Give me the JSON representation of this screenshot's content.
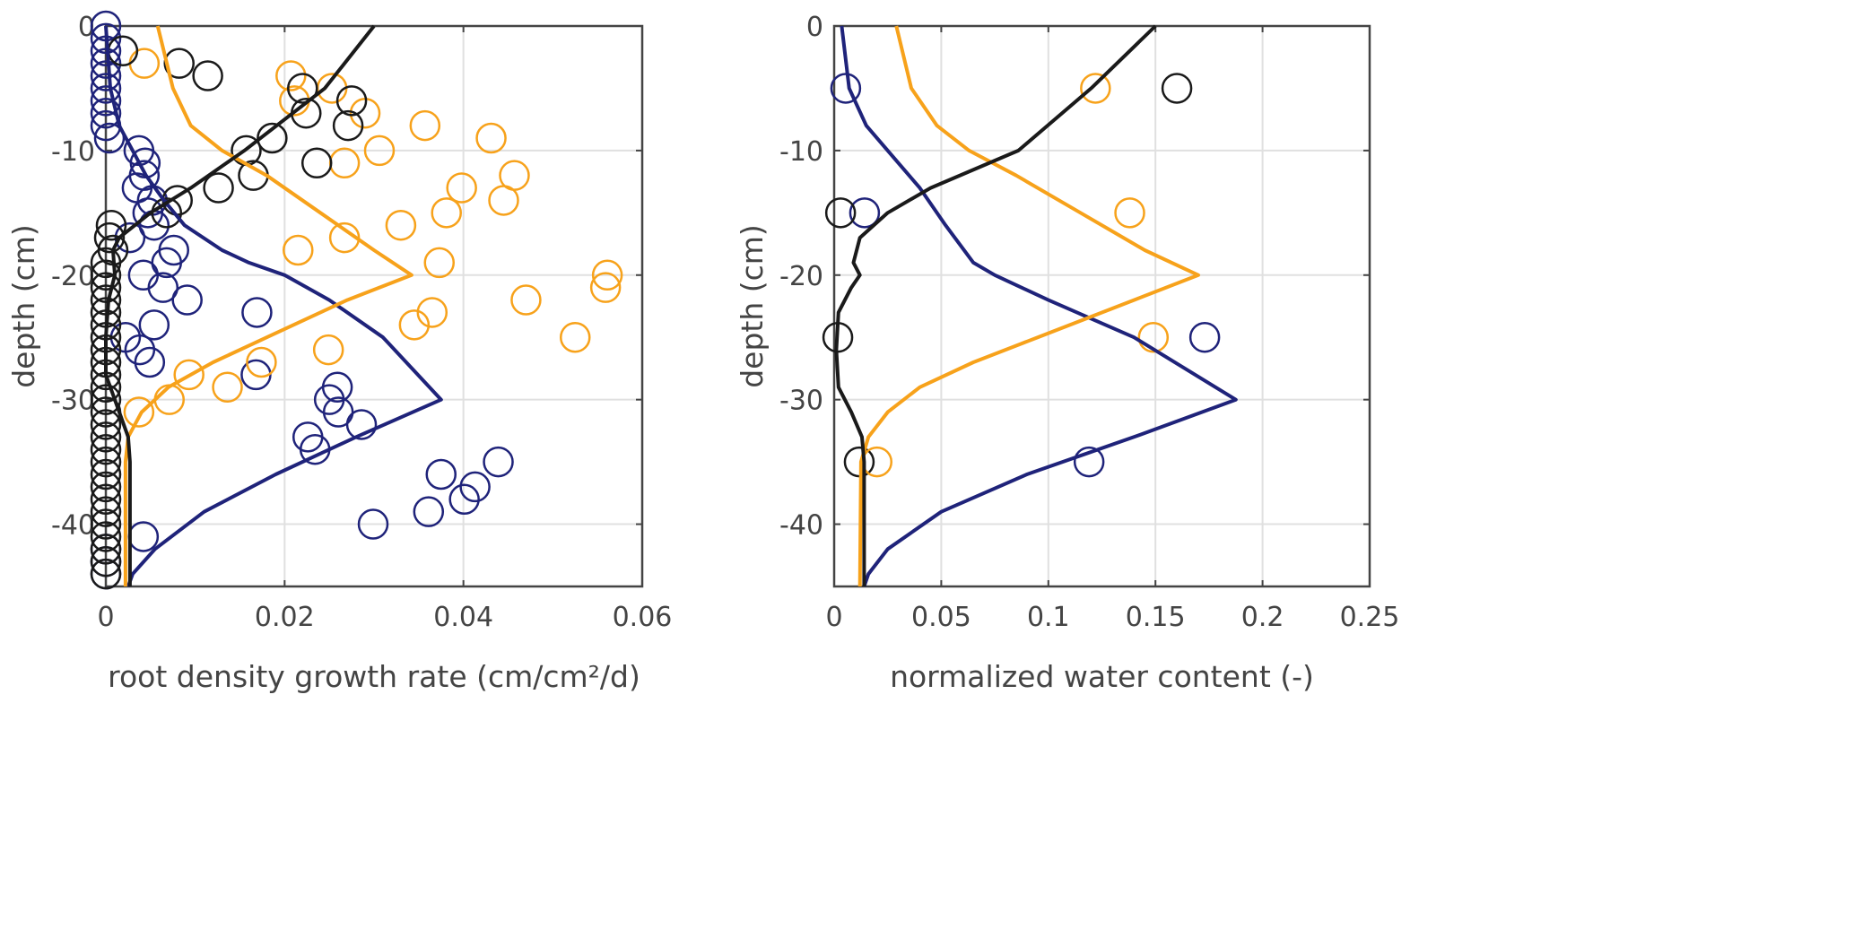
{
  "colors": {
    "blue": "#1f237a",
    "orange": "#f7a21b",
    "black": "#1a1a1a",
    "grid": "#e0e0e0",
    "axis": "#444444"
  },
  "chart_data": [
    {
      "type": "scatter",
      "xlabel": "root density growth rate (cm/cm²/d)",
      "ylabel": "depth (cm)",
      "xlim": [
        0,
        0.06
      ],
      "ylim": [
        -45,
        0
      ],
      "xticks": [
        "0",
        "0.02",
        "0.04",
        "0.06"
      ],
      "yticks": [
        "0",
        "-10",
        "-20",
        "-30",
        "-40"
      ],
      "grid": true,
      "series": [
        {
          "color": "blue",
          "kind": "points",
          "points": [
            [
              0,
              0
            ],
            [
              0,
              -1
            ],
            [
              0,
              -2
            ],
            [
              0,
              -3
            ],
            [
              0,
              -4
            ],
            [
              0,
              -5
            ],
            [
              0,
              -6
            ],
            [
              0,
              -7
            ],
            [
              0,
              -8
            ],
            [
              0.0004,
              -9
            ],
            [
              0.0037,
              -10
            ],
            [
              0.0044,
              -11
            ],
            [
              0.0043,
              -12
            ],
            [
              0.0035,
              -13
            ],
            [
              0.0052,
              -14
            ],
            [
              0.0047,
              -15
            ],
            [
              0.0054,
              -16
            ],
            [
              0.0027,
              -17
            ],
            [
              0.0076,
              -18
            ],
            [
              0.0068,
              -19
            ],
            [
              0.0042,
              -20
            ],
            [
              0.0064,
              -21
            ],
            [
              0.0091,
              -22
            ],
            [
              0.0169,
              -23
            ],
            [
              0.0054,
              -24
            ],
            [
              0.0022,
              -25
            ],
            [
              0.0038,
              -26
            ],
            [
              0.0049,
              -27
            ],
            [
              0.0168,
              -28
            ],
            [
              0.0259,
              -29
            ],
            [
              0.025,
              -30
            ],
            [
              0.026,
              -31
            ],
            [
              0.0286,
              -32
            ],
            [
              0.0226,
              -33
            ],
            [
              0.0234,
              -34
            ],
            [
              0.0439,
              -35
            ],
            [
              0.0375,
              -36
            ],
            [
              0.0413,
              -37
            ],
            [
              0.0401,
              -38
            ],
            [
              0.0361,
              -39
            ],
            [
              0.0299,
              -40
            ],
            [
              0.0042,
              -41
            ],
            [
              0,
              -42
            ],
            [
              0,
              -43
            ],
            [
              0,
              -44
            ]
          ]
        },
        {
          "color": "orange",
          "kind": "points",
          "points": [
            [
              0.0043,
              -3
            ],
            [
              0.0207,
              -4
            ],
            [
              0.0253,
              -5
            ],
            [
              0.0211,
              -6
            ],
            [
              0.029,
              -7
            ],
            [
              0.0357,
              -8
            ],
            [
              0.0431,
              -9
            ],
            [
              0.0306,
              -10
            ],
            [
              0.0267,
              -11
            ],
            [
              0.0457,
              -12
            ],
            [
              0.0398,
              -13
            ],
            [
              0.0445,
              -14
            ],
            [
              0.0381,
              -15
            ],
            [
              0.033,
              -16
            ],
            [
              0.0267,
              -17
            ],
            [
              0.0215,
              -18
            ],
            [
              0.0373,
              -19
            ],
            [
              0.0561,
              -20
            ],
            [
              0.0559,
              -21
            ],
            [
              0.047,
              -22
            ],
            [
              0.0365,
              -23
            ],
            [
              0.0345,
              -24
            ],
            [
              0.0525,
              -25
            ],
            [
              0.0249,
              -26
            ],
            [
              0.0174,
              -27
            ],
            [
              0.0093,
              -28
            ],
            [
              0.0136,
              -29
            ],
            [
              0.0071,
              -30
            ],
            [
              0.0037,
              -31
            ]
          ]
        },
        {
          "color": "black",
          "kind": "points",
          "points": [
            [
              0.0019,
              -2
            ],
            [
              0.0082,
              -3
            ],
            [
              0.0114,
              -4
            ],
            [
              0.022,
              -5
            ],
            [
              0.0275,
              -6
            ],
            [
              0.0224,
              -7
            ],
            [
              0.0271,
              -8
            ],
            [
              0.0186,
              -9
            ],
            [
              0.0157,
              -10
            ],
            [
              0.0236,
              -11
            ],
            [
              0.0165,
              -12
            ],
            [
              0.0126,
              -13
            ],
            [
              0.008,
              -14
            ],
            [
              0.0068,
              -15
            ],
            [
              0.0006,
              -16
            ],
            [
              0.0004,
              -17
            ],
            [
              0.0008,
              -18
            ],
            [
              0,
              -19
            ],
            [
              0,
              -20
            ],
            [
              0,
              -21
            ],
            [
              0,
              -22
            ],
            [
              0,
              -23
            ],
            [
              0,
              -24
            ],
            [
              0,
              -25
            ],
            [
              0,
              -26
            ],
            [
              0,
              -27
            ],
            [
              0,
              -28
            ],
            [
              0,
              -29
            ],
            [
              0,
              -30
            ],
            [
              0,
              -31
            ],
            [
              0,
              -32
            ],
            [
              0,
              -33
            ],
            [
              0,
              -34
            ],
            [
              0,
              -35
            ],
            [
              0,
              -36
            ],
            [
              0,
              -37
            ],
            [
              0,
              -38
            ],
            [
              0,
              -39
            ],
            [
              0,
              -40
            ],
            [
              0,
              -41
            ],
            [
              0,
              -42
            ],
            [
              0,
              -43
            ],
            [
              0,
              -44
            ]
          ]
        },
        {
          "color": "blue",
          "kind": "line",
          "points": [
            [
              0,
              0
            ],
            [
              0.0005,
              -5
            ],
            [
              0.0015,
              -8
            ],
            [
              0.003,
              -10
            ],
            [
              0.0045,
              -12
            ],
            [
              0.0065,
              -14
            ],
            [
              0.0088,
              -16
            ],
            [
              0.013,
              -18
            ],
            [
              0.016,
              -19
            ],
            [
              0.02,
              -20
            ],
            [
              0.025,
              -22
            ],
            [
              0.031,
              -25
            ],
            [
              0.0375,
              -30
            ],
            [
              0.028,
              -33
            ],
            [
              0.019,
              -36
            ],
            [
              0.011,
              -39
            ],
            [
              0.0055,
              -42
            ],
            [
              0.003,
              -44
            ],
            [
              0.0025,
              -45
            ]
          ]
        },
        {
          "color": "orange",
          "kind": "line",
          "points": [
            [
              0.0058,
              0
            ],
            [
              0.0075,
              -5
            ],
            [
              0.0095,
              -8
            ],
            [
              0.013,
              -10
            ],
            [
              0.018,
              -12
            ],
            [
              0.024,
              -15
            ],
            [
              0.03,
              -18
            ],
            [
              0.0342,
              -20
            ],
            [
              0.027,
              -22
            ],
            [
              0.018,
              -25
            ],
            [
              0.012,
              -27
            ],
            [
              0.007,
              -29
            ],
            [
              0.004,
              -31
            ],
            [
              0.0025,
              -33
            ],
            [
              0.0022,
              -35
            ],
            [
              0.0022,
              -45
            ]
          ]
        },
        {
          "color": "black",
          "kind": "line",
          "points": [
            [
              0.03,
              0
            ],
            [
              0.0245,
              -5
            ],
            [
              0.0155,
              -10
            ],
            [
              0.0095,
              -13
            ],
            [
              0.005,
              -15
            ],
            [
              0.0015,
              -17
            ],
            [
              0.0008,
              -18
            ],
            [
              0.001,
              -20
            ],
            [
              0.0003,
              -22
            ],
            [
              0,
              -25
            ],
            [
              0,
              -28
            ],
            [
              0.001,
              -30
            ],
            [
              0.0025,
              -33
            ],
            [
              0.0027,
              -35
            ],
            [
              0.0027,
              -45
            ]
          ]
        }
      ]
    },
    {
      "type": "scatter",
      "xlabel": "normalized water content (-)",
      "ylabel": "depth (cm)",
      "xlim": [
        0,
        0.25
      ],
      "ylim": [
        -45,
        0
      ],
      "xticks": [
        "0",
        "0.05",
        "0.1",
        "0.15",
        "0.2",
        "0.25"
      ],
      "yticks": [
        "0",
        "-10",
        "-20",
        "-30",
        "-40"
      ],
      "grid": true,
      "series": [
        {
          "color": "blue",
          "kind": "points",
          "points": [
            [
              0.0054,
              -5
            ],
            [
              0.0142,
              -15
            ],
            [
              0.173,
              -25
            ],
            [
              0.119,
              -35
            ]
          ]
        },
        {
          "color": "black",
          "kind": "points",
          "points": [
            [
              0.16,
              -5
            ],
            [
              0.003,
              -15
            ],
            [
              0.0017,
              -25
            ],
            [
              0.0117,
              -35
            ]
          ]
        },
        {
          "color": "orange",
          "kind": "points",
          "points": [
            [
              0.122,
              -5
            ],
            [
              0.138,
              -15
            ],
            [
              0.149,
              -25
            ],
            [
              0.02,
              -35
            ]
          ]
        },
        {
          "color": "blue",
          "kind": "line",
          "points": [
            [
              0.0035,
              0
            ],
            [
              0.007,
              -5
            ],
            [
              0.015,
              -8
            ],
            [
              0.025,
              -10
            ],
            [
              0.04,
              -13
            ],
            [
              0.052,
              -16
            ],
            [
              0.065,
              -19
            ],
            [
              0.075,
              -20
            ],
            [
              0.1,
              -22
            ],
            [
              0.14,
              -25
            ],
            [
              0.1875,
              -30
            ],
            [
              0.14,
              -33
            ],
            [
              0.09,
              -36
            ],
            [
              0.05,
              -39
            ],
            [
              0.025,
              -42
            ],
            [
              0.016,
              -44
            ],
            [
              0.014,
              -45
            ]
          ]
        },
        {
          "color": "orange",
          "kind": "line",
          "points": [
            [
              0.029,
              0
            ],
            [
              0.036,
              -5
            ],
            [
              0.048,
              -8
            ],
            [
              0.063,
              -10
            ],
            [
              0.085,
              -12
            ],
            [
              0.115,
              -15
            ],
            [
              0.145,
              -18
            ],
            [
              0.17,
              -20
            ],
            [
              0.14,
              -22
            ],
            [
              0.095,
              -25
            ],
            [
              0.065,
              -27
            ],
            [
              0.04,
              -29
            ],
            [
              0.025,
              -31
            ],
            [
              0.016,
              -33
            ],
            [
              0.0125,
              -35
            ],
            [
              0.012,
              -45
            ]
          ]
        },
        {
          "color": "black",
          "kind": "line",
          "points": [
            [
              0.15,
              0
            ],
            [
              0.12,
              -5
            ],
            [
              0.086,
              -10
            ],
            [
              0.045,
              -13
            ],
            [
              0.025,
              -15
            ],
            [
              0.012,
              -17
            ],
            [
              0.009,
              -19
            ],
            [
              0.012,
              -20
            ],
            [
              0.008,
              -21
            ],
            [
              0.002,
              -23
            ],
            [
              0.001,
              -26
            ],
            [
              0.002,
              -29
            ],
            [
              0.008,
              -31
            ],
            [
              0.013,
              -33
            ],
            [
              0.014,
              -35
            ],
            [
              0.014,
              -45
            ]
          ]
        }
      ]
    }
  ]
}
